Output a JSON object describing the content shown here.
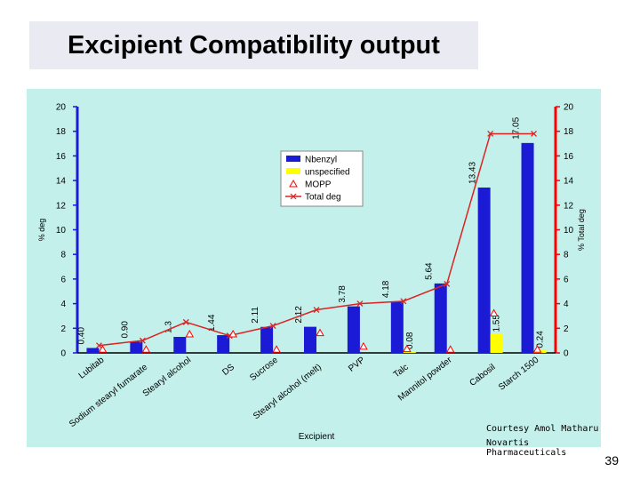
{
  "slide": {
    "title": "Excipient Compatibility output",
    "page_number": "39",
    "credit_line1": "Courtesy Amol Matharu",
    "credit_line2": "Novartis Pharmaceuticals"
  },
  "colors": {
    "plot_bg": "#c3f0ea",
    "title_bg": "#eaeaf2",
    "nbenzyl": "#1b1bd6",
    "unspecified": "#ffff00",
    "mopp": "#ff0000",
    "total_deg": "#dd2222",
    "axis_left": "#1b1bd6",
    "axis_right": "#ff0000"
  },
  "chart_data": {
    "type": "bar",
    "xlabel": "Excipient",
    "ylabel": "% deg",
    "y2label": "% Total deg",
    "ylim": [
      0,
      20
    ],
    "y2lim": [
      0,
      20
    ],
    "yticks": [
      0,
      2,
      4,
      6,
      8,
      10,
      12,
      14,
      16,
      18,
      20
    ],
    "grid": false,
    "legend_position": "top-center",
    "categories": [
      "Lubitab",
      "Sodium stearyl fumarate",
      "Stearyl alcohol",
      "DS",
      "Sucrose",
      "Stearyl alcohol (melt)",
      "PVP",
      "Talc",
      "Mannitol powder",
      "Cabosil",
      "Starch 1500"
    ],
    "series": [
      {
        "name": "Nbenzyl",
        "kind": "bar",
        "values": [
          0.4,
          0.9,
          1.3,
          1.44,
          2.11,
          2.12,
          3.78,
          4.18,
          5.64,
          13.43,
          17.05
        ],
        "labels": [
          "0.40",
          "0.90",
          "1.3",
          "1.44",
          "2.11",
          "2.12",
          "3.78",
          "4.18",
          "5.64",
          "13.43",
          "17.05"
        ]
      },
      {
        "name": "unspecified",
        "kind": "bar",
        "values": [
          null,
          null,
          null,
          null,
          null,
          null,
          null,
          0.08,
          null,
          1.55,
          0.24
        ],
        "labels": [
          "",
          "",
          "",
          "",
          "",
          "",
          "",
          "0.08",
          "",
          "1.55",
          "0.24"
        ]
      },
      {
        "name": "MOPP",
        "kind": "scatter",
        "values": [
          0.05,
          0.05,
          1.3,
          1.3,
          0.05,
          1.4,
          0.3,
          0.1,
          0.05,
          3.0,
          0.05
        ]
      },
      {
        "name": "Total deg",
        "kind": "line",
        "axis": "right",
        "values": [
          0.6,
          1.0,
          2.5,
          1.4,
          2.2,
          3.5,
          4.0,
          4.2,
          5.6,
          17.8,
          17.8
        ]
      }
    ]
  }
}
